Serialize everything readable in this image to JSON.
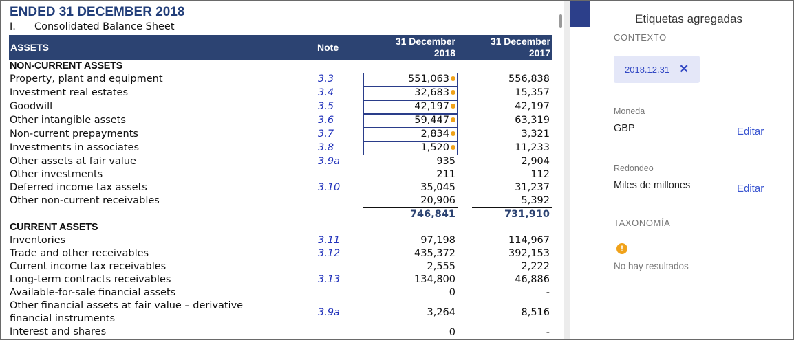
{
  "document": {
    "title": "ENDED 31 DECEMBER 2018",
    "subtitle_num": "I.",
    "subtitle": "Consolidated Balance Sheet",
    "header": {
      "assets": "ASSETS",
      "note": "Note",
      "col1_line1": "31 December",
      "col1_line2": "2018",
      "col2_line1": "31 December",
      "col2_line2": "2017"
    },
    "non_current_heading": "NON-CURRENT ASSETS",
    "non_current_rows": [
      {
        "label": "Property, plant and equipment",
        "note": "3.3",
        "v2018": "551,063",
        "v2017": "556,838"
      },
      {
        "label": "Investment real estates",
        "note": "3.4",
        "v2018": "32,683",
        "v2017": "15,357"
      },
      {
        "label": "Goodwill",
        "note": "3.5",
        "v2018": "42,197",
        "v2017": "42,197"
      },
      {
        "label": "Other intangible assets",
        "note": "3.6",
        "v2018": "59,447",
        "v2017": "63,319"
      },
      {
        "label": "Non-current prepayments",
        "note": "3.7",
        "v2018": "2,834",
        "v2017": "3,321"
      },
      {
        "label": "Investments in associates",
        "note": "3.8",
        "v2018": "1,520",
        "v2017": "11,233"
      },
      {
        "label": "Other assets at fair value",
        "note": "3.9a",
        "v2018": "935",
        "v2017": "2,904"
      },
      {
        "label": "Other investments",
        "note": "",
        "v2018": "211",
        "v2017": "112"
      },
      {
        "label": "Deferred income tax assets",
        "note": "3.10",
        "v2018": "35,045",
        "v2017": "31,237"
      },
      {
        "label": "Other non-current receivables",
        "note": "",
        "v2018": "20,906",
        "v2017": "5,392"
      }
    ],
    "non_current_total": {
      "v2018": "746,841",
      "v2017": "731,910"
    },
    "current_heading": "CURRENT ASSETS",
    "current_rows": [
      {
        "label": "Inventories",
        "note": "3.11",
        "v2018": "97,198",
        "v2017": "114,967"
      },
      {
        "label": "Trade and other receivables",
        "note": "3.12",
        "v2018": "435,372",
        "v2017": "392,153"
      },
      {
        "label": "Current income tax receivables",
        "note": "",
        "v2018": "2,555",
        "v2017": "2,222"
      },
      {
        "label": "Long-term contracts receivables",
        "note": "3.13",
        "v2018": "134,800",
        "v2017": "46,886"
      },
      {
        "label": "Available-for-sale financial assets",
        "note": "",
        "v2018": "0",
        "v2017": "-"
      }
    ],
    "derivative_row": {
      "label_line1": "Other financial assets at fair value – derivative",
      "label_line2": "financial instruments",
      "note": "3.9a",
      "v2018": "3,264",
      "v2017": "8,516"
    },
    "last_row": {
      "label": "Interest and shares",
      "note": "",
      "v2018": "0",
      "v2017": "-"
    }
  },
  "panel": {
    "title": "Etiquetas agregadas",
    "context_label": "CONTEXTO",
    "context_chip": "2018.12.31",
    "chip_close": "✕",
    "currency_label": "Moneda",
    "currency_value": "GBP",
    "rounding_label": "Redondeo",
    "rounding_value": "Miles de millones",
    "edit_label": "Editar",
    "taxonomy_label": "TAXONOMÍA",
    "warning_glyph": "!",
    "no_results": "No hay resultados"
  },
  "colors": {
    "header_bg": "#2c4372",
    "title": "#233f7a",
    "note_link": "#2233bb",
    "tag_dot": "#f0a21a",
    "accent": "#3a55d0",
    "chip_bg": "#e4e7f8"
  }
}
